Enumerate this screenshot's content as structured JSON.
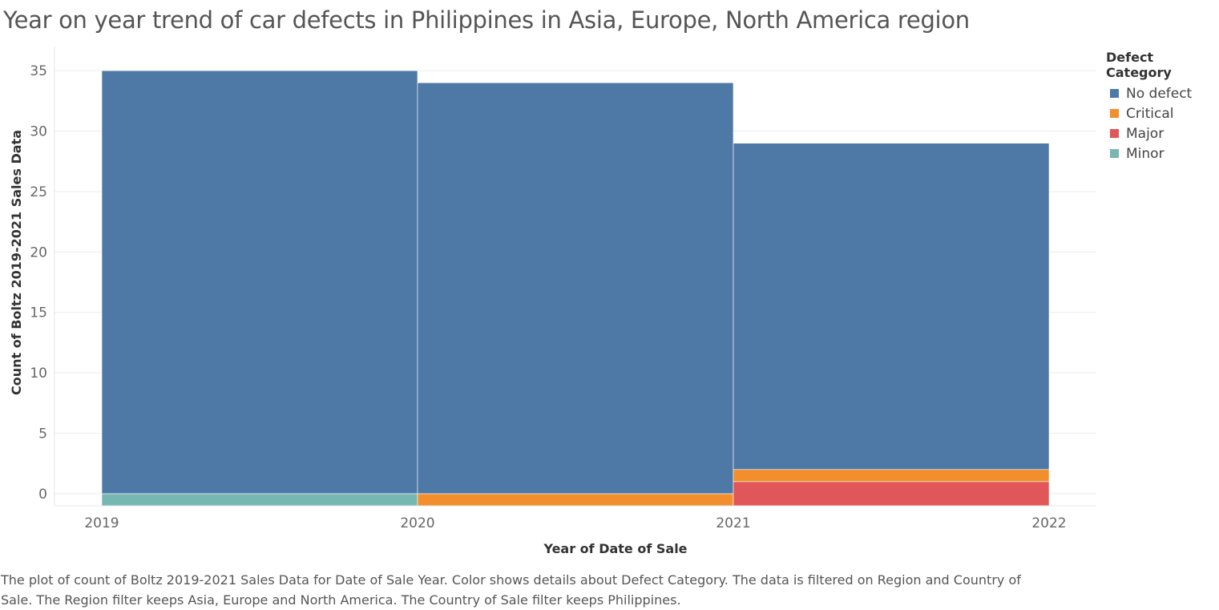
{
  "colors": {
    "No defect": "#4e79a7",
    "Critical": "#f28e2b",
    "Major": "#e15759",
    "Minor": "#76b7b2"
  },
  "chart_data": {
    "type": "bar",
    "title": "Year on year trend of car defects in Philippines in Asia, Europe, North America region",
    "xlabel": "Year of Date of Sale",
    "ylabel": "Count of Boltz 2019-2021 Sales Data",
    "x_ticks": [
      "2019",
      "2020",
      "2021",
      "2022"
    ],
    "y_ticks": [
      0,
      5,
      10,
      15,
      20,
      25,
      30,
      35
    ],
    "ylim": [
      -1,
      37
    ],
    "categories": [
      "2019",
      "2020",
      "2021"
    ],
    "stack_order": [
      "Major",
      "Critical",
      "Minor",
      "No defect"
    ],
    "series": [
      {
        "name": "No defect",
        "values": [
          35,
          34,
          27
        ]
      },
      {
        "name": "Critical",
        "values": [
          0,
          1,
          1
        ]
      },
      {
        "name": "Major",
        "values": [
          0,
          0,
          2
        ]
      },
      {
        "name": "Minor",
        "values": [
          1,
          0,
          0
        ]
      }
    ],
    "legend": {
      "title": "Defect Category",
      "position": "right",
      "items": [
        "No defect",
        "Critical",
        "Major",
        "Minor"
      ]
    }
  },
  "caption": [
    "The plot of count of Boltz 2019-2021 Sales Data for Date of Sale Year.  Color shows details about Defect Category. The data is filtered on Region and Country of",
    "Sale. The Region filter keeps Asia, Europe and North America. The Country of Sale filter keeps Philippines."
  ]
}
